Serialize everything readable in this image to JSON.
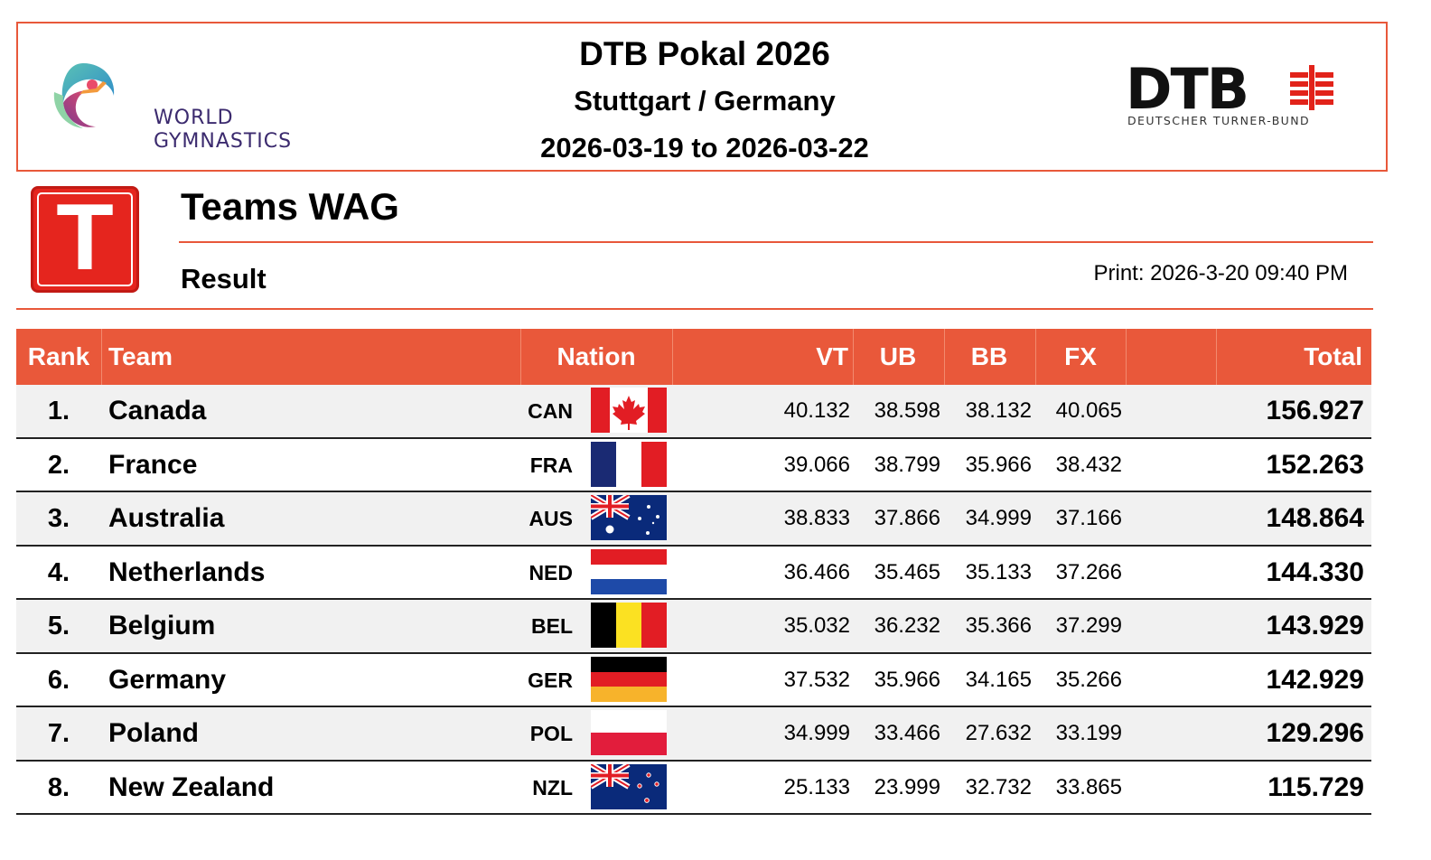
{
  "header": {
    "org_logo_alt": "World Gymnastics",
    "org_logo_lines": [
      "WORLD",
      "GYMNASTICS"
    ],
    "event_title": "DTB Pokal 2026",
    "location": "Stuttgart / Germany",
    "dates": "2026-03-19 to 2026-03-22",
    "federation_wordmark": "DTB",
    "federation_name": "DEUTSCHER TURNER-BUND"
  },
  "section": {
    "icon_letter": "T",
    "title": "Teams WAG",
    "subtitle": "Result",
    "print_stamp": "Print: 2026-3-20 09:40 PM"
  },
  "table": {
    "columns": {
      "rank": "Rank",
      "team": "Team",
      "nation": "Nation",
      "vt": "VT",
      "ub": "UB",
      "bb": "BB",
      "fx": "FX",
      "total": "Total"
    },
    "rows": [
      {
        "rank": "1.",
        "team": "Canada",
        "code": "CAN",
        "flag": "canada-flag-icon",
        "vt": "40.132",
        "ub": "38.598",
        "bb": "38.132",
        "fx": "40.065",
        "total": "156.927"
      },
      {
        "rank": "2.",
        "team": "France",
        "code": "FRA",
        "flag": "france-flag-icon",
        "vt": "39.066",
        "ub": "38.799",
        "bb": "35.966",
        "fx": "38.432",
        "total": "152.263"
      },
      {
        "rank": "3.",
        "team": "Australia",
        "code": "AUS",
        "flag": "australia-flag-icon",
        "vt": "38.833",
        "ub": "37.866",
        "bb": "34.999",
        "fx": "37.166",
        "total": "148.864"
      },
      {
        "rank": "4.",
        "team": "Netherlands",
        "code": "NED",
        "flag": "netherlands-flag-icon",
        "vt": "36.466",
        "ub": "35.465",
        "bb": "35.133",
        "fx": "37.266",
        "total": "144.330"
      },
      {
        "rank": "5.",
        "team": "Belgium",
        "code": "BEL",
        "flag": "belgium-flag-icon",
        "vt": "35.032",
        "ub": "36.232",
        "bb": "35.366",
        "fx": "37.299",
        "total": "143.929"
      },
      {
        "rank": "6.",
        "team": "Germany",
        "code": "GER",
        "flag": "germany-flag-icon",
        "vt": "37.532",
        "ub": "35.966",
        "bb": "34.165",
        "fx": "35.266",
        "total": "142.929"
      },
      {
        "rank": "7.",
        "team": "Poland",
        "code": "POL",
        "flag": "poland-flag-icon",
        "vt": "34.999",
        "ub": "33.466",
        "bb": "27.632",
        "fx": "33.199",
        "total": "129.296"
      },
      {
        "rank": "8.",
        "team": "New Zealand",
        "code": "NZL",
        "flag": "new-zealand-flag-icon",
        "vt": "25.133",
        "ub": "23.999",
        "bb": "32.732",
        "fx": "33.865",
        "total": "115.729"
      }
    ]
  },
  "colors": {
    "accent": "#e9583a",
    "header_border": "#e8583a",
    "icon_red": "#e5251e",
    "row_alt": "#f1f1f1",
    "wg_purple": "#3b2a6e",
    "dtb_red": "#e2231a"
  }
}
